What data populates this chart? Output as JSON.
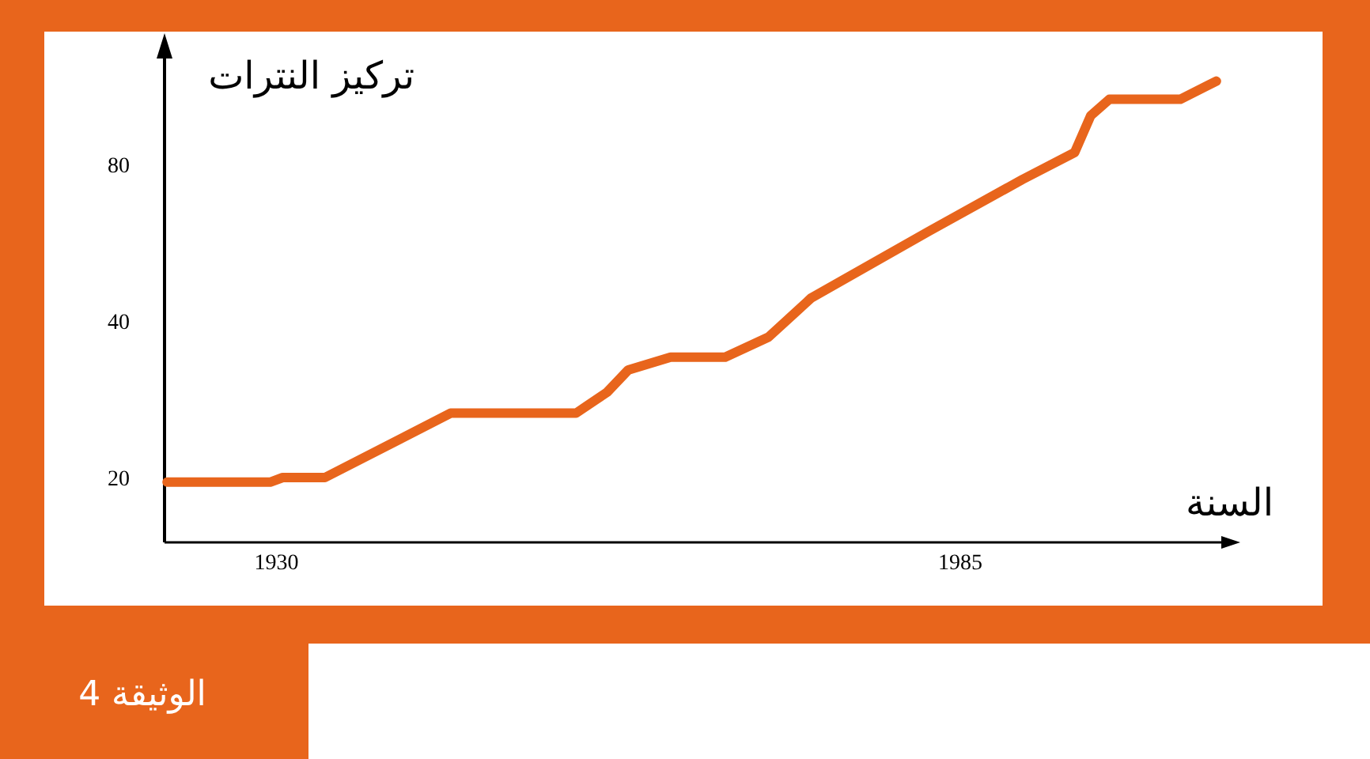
{
  "chart_data": {
    "type": "line",
    "title": "الوثيقة 4",
    "xlabel": "السنة",
    "ylabel": "تركيز النترات",
    "x": [
      1921.2,
      1929.5,
      1930.5,
      1933.9,
      1944,
      1954.1,
      1956.6,
      1958.3,
      1961.7,
      1966.1,
      1969.6,
      1973,
      1982.5,
      1990,
      1994.2,
      1995.5,
      1997,
      2002.7,
      2005.6
    ],
    "series": [
      {
        "color": "#e8651c",
        "values": [
          19.6,
          19.6,
          20,
          20,
          26.6,
          26.6,
          29.2,
          32.2,
          34.1,
          34.1,
          37.3,
          44.3,
          59.6,
          75,
          84.5,
          99.5,
          107,
          107,
          116
        ]
      }
    ],
    "xlim": [
      1921,
      2006
    ],
    "xticks": [
      1930,
      1985
    ],
    "ylim": [
      15,
      130
    ],
    "yticks": [
      20,
      40,
      80
    ],
    "log": true,
    "grid": false,
    "marker": "none",
    "line_style": "solid"
  }
}
